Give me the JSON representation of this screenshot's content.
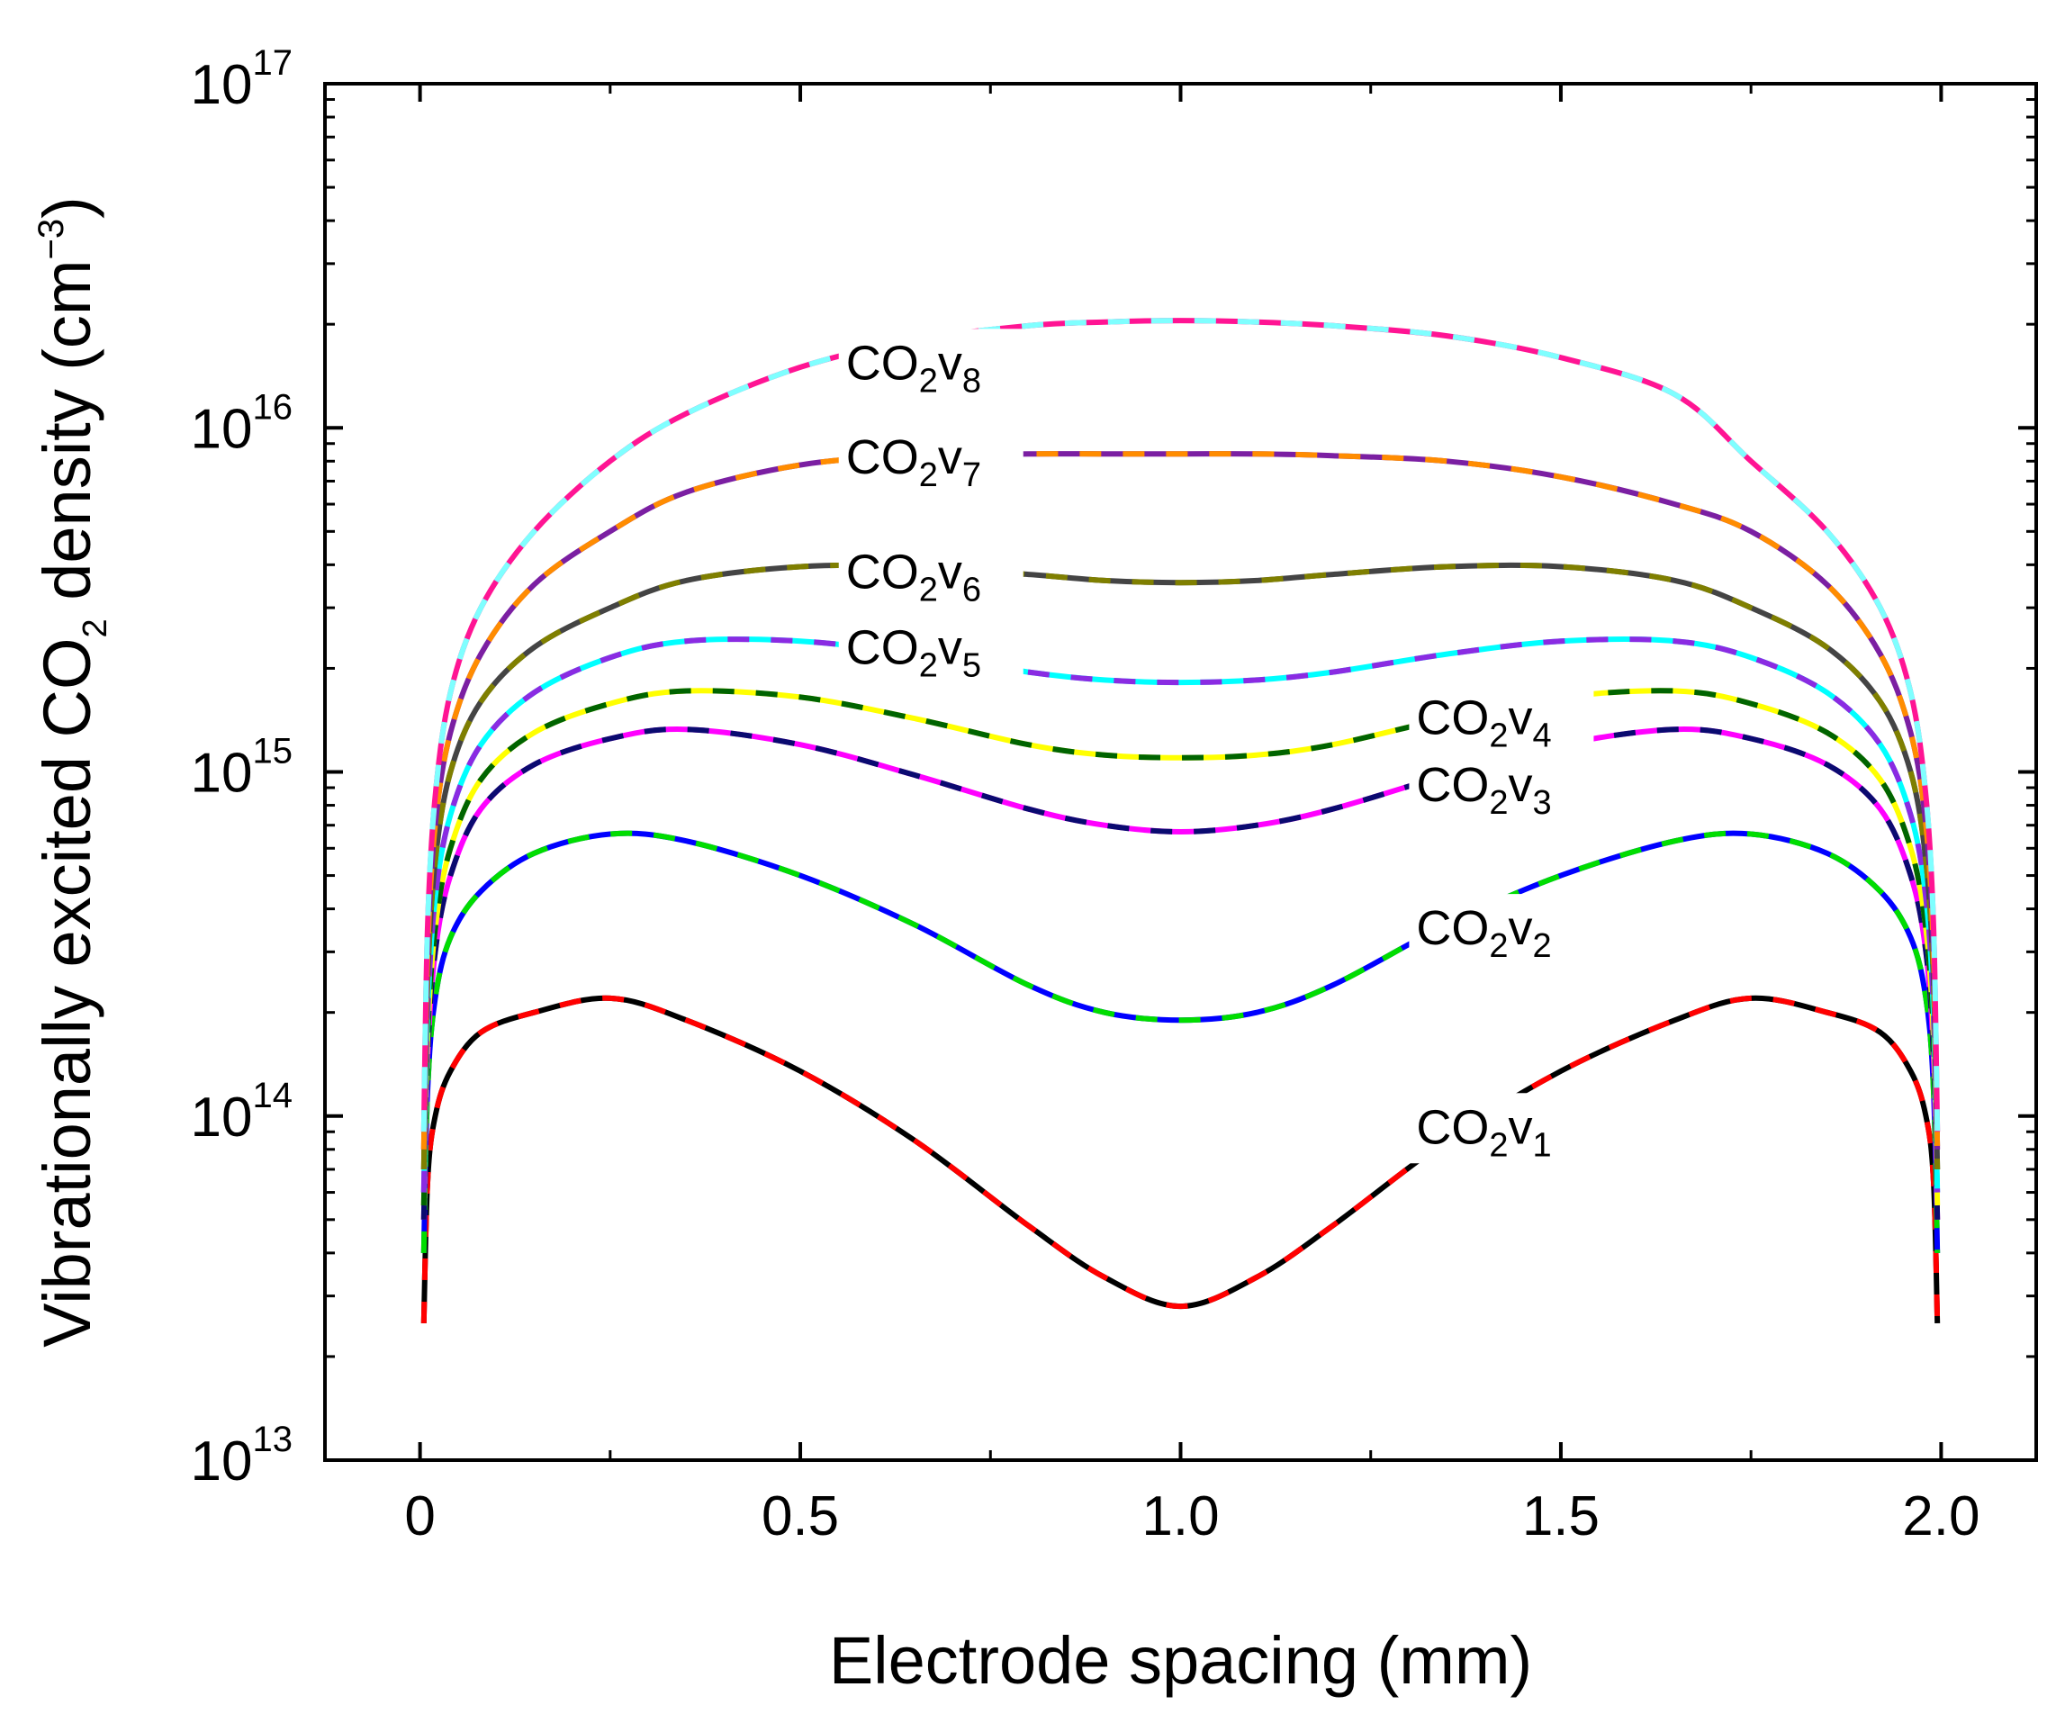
{
  "chart_data": {
    "type": "line",
    "xlabel": "Electrode spacing (mm)",
    "ylabel": {
      "prefix": "Vibrationally excited CO",
      "sub": "2",
      "middle": " density (cm",
      "sup": "−3",
      "suffix": ")"
    },
    "xlim": [
      -0.125,
      2.125
    ],
    "ylim": [
      10000000000000.0,
      1e+17
    ],
    "y_scale": "log",
    "grid": false,
    "x_ticks": [
      {
        "value": 0,
        "label": "0"
      },
      {
        "value": 0.5,
        "label": "0.5"
      },
      {
        "value": 1.0,
        "label": "1.0"
      },
      {
        "value": 1.5,
        "label": "1.5"
      },
      {
        "value": 2.0,
        "label": "2.0"
      }
    ],
    "y_ticks": [
      {
        "value": 10000000000000.0,
        "base": "10",
        "exp": "13"
      },
      {
        "value": 100000000000000.0,
        "base": "10",
        "exp": "14"
      },
      {
        "value": 1000000000000000.0,
        "base": "10",
        "exp": "15"
      },
      {
        "value": 1e+16,
        "base": "10",
        "exp": "16"
      },
      {
        "value": 1e+17,
        "base": "10",
        "exp": "17"
      }
    ],
    "x": [
      0.005,
      0.01,
      0.02,
      0.04,
      0.08,
      0.15,
      0.25,
      0.35,
      0.5,
      0.65,
      0.8,
      0.9,
      1.0,
      1.1,
      1.2,
      1.35,
      1.5,
      1.65,
      1.75,
      1.85,
      1.92,
      1.96,
      1.98,
      1.99,
      1.995
    ],
    "series": [
      {
        "label": {
          "base": "CO",
          "sub": "2",
          "v": "v",
          "n": "1"
        },
        "colors": [
          "#000000",
          "#ff0000"
        ],
        "values": [
          25000000000000.0,
          65000000000000.0,
          100000000000000.0,
          135000000000000.0,
          175000000000000.0,
          200000000000000.0,
          220000000000000.0,
          190000000000000.0,
          135000000000000.0,
          85000000000000.0,
          48000000000000.0,
          34000000000000.0,
          28000000000000.0,
          34000000000000.0,
          48000000000000.0,
          85000000000000.0,
          135000000000000.0,
          190000000000000.0,
          220000000000000.0,
          200000000000000.0,
          175000000000000.0,
          135000000000000.0,
          100000000000000.0,
          65000000000000.0,
          25000000000000.0
        ]
      },
      {
        "label": {
          "base": "CO",
          "sub": "2",
          "v": "v",
          "n": "2"
        },
        "colors": [
          "#0000ff",
          "#00dd00"
        ],
        "values": [
          40000000000000.0,
          120000000000000.0,
          220000000000000.0,
          330000000000000.0,
          450000000000000.0,
          580000000000000.0,
          660000000000000.0,
          630000000000000.0,
          500000000000000.0,
          360000000000000.0,
          240000000000000.0,
          200000000000000.0,
          190000000000000.0,
          200000000000000.0,
          240000000000000.0,
          360000000000000.0,
          500000000000000.0,
          630000000000000.0,
          660000000000000.0,
          580000000000000.0,
          450000000000000.0,
          330000000000000.0,
          220000000000000.0,
          120000000000000.0,
          40000000000000.0
        ]
      },
      {
        "label": {
          "base": "CO",
          "sub": "2",
          "v": "v",
          "n": "3"
        },
        "colors": [
          "#ff00ff",
          "#0a0a70"
        ],
        "values": [
          50000000000000.0,
          150000000000000.0,
          300000000000000.0,
          500000000000000.0,
          780000000000000.0,
          1050000000000000.0,
          1250000000000000.0,
          1330000000000000.0,
          1200000000000000.0,
          980000000000000.0,
          780000000000000.0,
          700000000000000.0,
          670000000000000.0,
          700000000000000.0,
          780000000000000.0,
          980000000000000.0,
          1200000000000000.0,
          1330000000000000.0,
          1250000000000000.0,
          1050000000000000.0,
          780000000000000.0,
          500000000000000.0,
          300000000000000.0,
          150000000000000.0,
          50000000000000.0
        ]
      },
      {
        "label": {
          "base": "CO",
          "sub": "2",
          "v": "v",
          "n": "4"
        },
        "colors": [
          "#ffff00",
          "#006400"
        ],
        "values": [
          55000000000000.0,
          170000000000000.0,
          350000000000000.0,
          600000000000000.0,
          950000000000000.0,
          1300000000000000.0,
          1580000000000000.0,
          1720000000000000.0,
          1650000000000000.0,
          1430000000000000.0,
          1200000000000000.0,
          1120000000000000.0,
          1100000000000000.0,
          1120000000000000.0,
          1200000000000000.0,
          1430000000000000.0,
          1650000000000000.0,
          1720000000000000.0,
          1580000000000000.0,
          1300000000000000.0,
          950000000000000.0,
          600000000000000.0,
          350000000000000.0,
          170000000000000.0,
          55000000000000.0
        ]
      },
      {
        "label": {
          "base": "CO",
          "sub": "2",
          "v": "v",
          "n": "5"
        },
        "colors": [
          "#00ffff",
          "#8a2be2"
        ],
        "values": [
          60000000000000.0,
          200000000000000.0,
          430000000000000.0,
          750000000000000.0,
          1200000000000000.0,
          1700000000000000.0,
          2150000000000000.0,
          2400000000000000.0,
          2400000000000000.0,
          2200000000000000.0,
          1950000000000000.0,
          1850000000000000.0,
          1820000000000000.0,
          1850000000000000.0,
          1950000000000000.0,
          2200000000000000.0,
          2400000000000000.0,
          2400000000000000.0,
          2150000000000000.0,
          1700000000000000.0,
          1200000000000000.0,
          750000000000000.0,
          430000000000000.0,
          200000000000000.0,
          60000000000000.0
        ]
      },
      {
        "label": {
          "base": "CO",
          "sub": "2",
          "v": "v",
          "n": "6"
        },
        "colors": [
          "#444444",
          "#7f7f00"
        ],
        "values": [
          70000000000000.0,
          250000000000000.0,
          550000000000000.0,
          1000000000000000.0,
          1600000000000000.0,
          2300000000000000.0,
          3000000000000000.0,
          3600000000000000.0,
          3950000000000000.0,
          3950000000000000.0,
          3750000000000000.0,
          3600000000000000.0,
          3550000000000000.0,
          3600000000000000.0,
          3750000000000000.0,
          3950000000000000.0,
          3950000000000000.0,
          3600000000000000.0,
          3000000000000000.0,
          2300000000000000.0,
          1600000000000000.0,
          1000000000000000.0,
          550000000000000.0,
          250000000000000.0,
          70000000000000.0
        ]
      },
      {
        "label": {
          "base": "CO",
          "sub": "2",
          "v": "v",
          "n": "7"
        },
        "colors": [
          "#7b1fa2",
          "#ff8c00"
        ],
        "values": [
          80000000000000.0,
          300000000000000.0,
          700000000000000.0,
          1300000000000000.0,
          2200000000000000.0,
          3500000000000000.0,
          5000000000000000.0,
          6500000000000000.0,
          7800000000000000.0,
          8300000000000000.0,
          8400000000000000.0,
          8400000000000000.0,
          8400000000000000.0,
          8400000000000000.0,
          8300000000000000.0,
          8000000000000000.0,
          7200000000000000.0,
          6000000000000000.0,
          5000000000000000.0,
          3500000000000000.0,
          2200000000000000.0,
          1300000000000000.0,
          700000000000000.0,
          300000000000000.0,
          80000000000000.0
        ]
      },
      {
        "label": {
          "base": "CO",
          "sub": "2",
          "v": "v",
          "n": "8"
        },
        "colors": [
          "#ff1493",
          "#7fffff"
        ],
        "values": [
          90000000000000.0,
          360000000000000.0,
          850000000000000.0,
          1700000000000000.0,
          3000000000000000.0,
          5000000000000000.0,
          8000000000000000.0,
          1.1e+16,
          1.5e+16,
          1.8e+16,
          1.98e+16,
          2.03e+16,
          2.05e+16,
          2.03e+16,
          1.98e+16,
          1.85e+16,
          1.6e+16,
          1.25e+16,
          8000000000000000.0,
          5000000000000000.0,
          3000000000000000.0,
          1700000000000000.0,
          850000000000000.0,
          360000000000000.0,
          90000000000000.0
        ]
      }
    ],
    "curve_label_anchors": [
      {
        "series": 0,
        "x": 1.31,
        "y": 95000000000000.0
      },
      {
        "series": 1,
        "x": 1.31,
        "y": 360000000000000.0
      },
      {
        "series": 2,
        "x": 1.31,
        "y": 940000000000000.0
      },
      {
        "series": 3,
        "x": 1.31,
        "y": 1470000000000000.0
      },
      {
        "series": 4,
        "x": 0.56,
        "y": 2350000000000000.0
      },
      {
        "series": 5,
        "x": 0.56,
        "y": 3900000000000000.0
      },
      {
        "series": 6,
        "x": 0.56,
        "y": 8400000000000000.0
      },
      {
        "series": 7,
        "x": 0.56,
        "y": 1.58e+16
      }
    ]
  }
}
